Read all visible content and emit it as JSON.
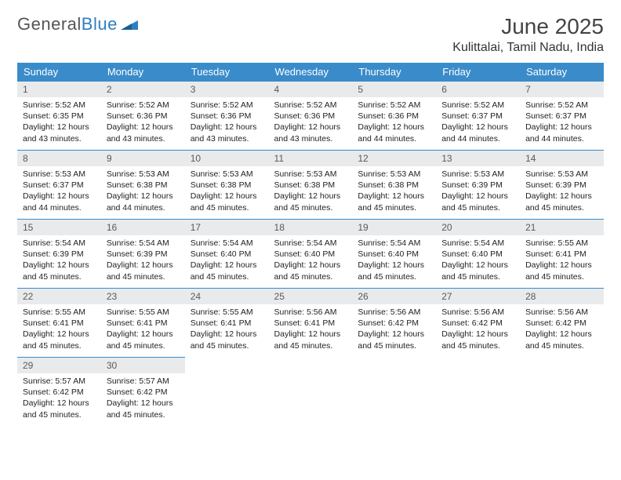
{
  "brand": {
    "part1": "General",
    "part2": "Blue"
  },
  "title": "June 2025",
  "location": "Kulittalai, Tamil Nadu, India",
  "colors": {
    "header_bg": "#3a8bca",
    "header_text": "#ffffff",
    "daynum_bg": "#e9eaeb",
    "daynum_text": "#5a5a5a",
    "border": "#3a8bca",
    "body_text": "#222222",
    "page_bg": "#ffffff",
    "title_text": "#444444",
    "logo_gray": "#555555",
    "logo_blue": "#2f7fc0"
  },
  "typography": {
    "month_title_fontsize": 28,
    "location_fontsize": 16,
    "weekday_fontsize": 13,
    "daynum_fontsize": 12,
    "body_fontsize": 10.5
  },
  "weekdays": [
    "Sunday",
    "Monday",
    "Tuesday",
    "Wednesday",
    "Thursday",
    "Friday",
    "Saturday"
  ],
  "weeks": [
    [
      {
        "n": "1",
        "sr": "5:52 AM",
        "ss": "6:35 PM",
        "dl": "12 hours and 43 minutes."
      },
      {
        "n": "2",
        "sr": "5:52 AM",
        "ss": "6:36 PM",
        "dl": "12 hours and 43 minutes."
      },
      {
        "n": "3",
        "sr": "5:52 AM",
        "ss": "6:36 PM",
        "dl": "12 hours and 43 minutes."
      },
      {
        "n": "4",
        "sr": "5:52 AM",
        "ss": "6:36 PM",
        "dl": "12 hours and 43 minutes."
      },
      {
        "n": "5",
        "sr": "5:52 AM",
        "ss": "6:36 PM",
        "dl": "12 hours and 44 minutes."
      },
      {
        "n": "6",
        "sr": "5:52 AM",
        "ss": "6:37 PM",
        "dl": "12 hours and 44 minutes."
      },
      {
        "n": "7",
        "sr": "5:52 AM",
        "ss": "6:37 PM",
        "dl": "12 hours and 44 minutes."
      }
    ],
    [
      {
        "n": "8",
        "sr": "5:53 AM",
        "ss": "6:37 PM",
        "dl": "12 hours and 44 minutes."
      },
      {
        "n": "9",
        "sr": "5:53 AM",
        "ss": "6:38 PM",
        "dl": "12 hours and 44 minutes."
      },
      {
        "n": "10",
        "sr": "5:53 AM",
        "ss": "6:38 PM",
        "dl": "12 hours and 45 minutes."
      },
      {
        "n": "11",
        "sr": "5:53 AM",
        "ss": "6:38 PM",
        "dl": "12 hours and 45 minutes."
      },
      {
        "n": "12",
        "sr": "5:53 AM",
        "ss": "6:38 PM",
        "dl": "12 hours and 45 minutes."
      },
      {
        "n": "13",
        "sr": "5:53 AM",
        "ss": "6:39 PM",
        "dl": "12 hours and 45 minutes."
      },
      {
        "n": "14",
        "sr": "5:53 AM",
        "ss": "6:39 PM",
        "dl": "12 hours and 45 minutes."
      }
    ],
    [
      {
        "n": "15",
        "sr": "5:54 AM",
        "ss": "6:39 PM",
        "dl": "12 hours and 45 minutes."
      },
      {
        "n": "16",
        "sr": "5:54 AM",
        "ss": "6:39 PM",
        "dl": "12 hours and 45 minutes."
      },
      {
        "n": "17",
        "sr": "5:54 AM",
        "ss": "6:40 PM",
        "dl": "12 hours and 45 minutes."
      },
      {
        "n": "18",
        "sr": "5:54 AM",
        "ss": "6:40 PM",
        "dl": "12 hours and 45 minutes."
      },
      {
        "n": "19",
        "sr": "5:54 AM",
        "ss": "6:40 PM",
        "dl": "12 hours and 45 minutes."
      },
      {
        "n": "20",
        "sr": "5:54 AM",
        "ss": "6:40 PM",
        "dl": "12 hours and 45 minutes."
      },
      {
        "n": "21",
        "sr": "5:55 AM",
        "ss": "6:41 PM",
        "dl": "12 hours and 45 minutes."
      }
    ],
    [
      {
        "n": "22",
        "sr": "5:55 AM",
        "ss": "6:41 PM",
        "dl": "12 hours and 45 minutes."
      },
      {
        "n": "23",
        "sr": "5:55 AM",
        "ss": "6:41 PM",
        "dl": "12 hours and 45 minutes."
      },
      {
        "n": "24",
        "sr": "5:55 AM",
        "ss": "6:41 PM",
        "dl": "12 hours and 45 minutes."
      },
      {
        "n": "25",
        "sr": "5:56 AM",
        "ss": "6:41 PM",
        "dl": "12 hours and 45 minutes."
      },
      {
        "n": "26",
        "sr": "5:56 AM",
        "ss": "6:42 PM",
        "dl": "12 hours and 45 minutes."
      },
      {
        "n": "27",
        "sr": "5:56 AM",
        "ss": "6:42 PM",
        "dl": "12 hours and 45 minutes."
      },
      {
        "n": "28",
        "sr": "5:56 AM",
        "ss": "6:42 PM",
        "dl": "12 hours and 45 minutes."
      }
    ],
    [
      {
        "n": "29",
        "sr": "5:57 AM",
        "ss": "6:42 PM",
        "dl": "12 hours and 45 minutes."
      },
      {
        "n": "30",
        "sr": "5:57 AM",
        "ss": "6:42 PM",
        "dl": "12 hours and 45 minutes."
      },
      null,
      null,
      null,
      null,
      null
    ]
  ],
  "labels": {
    "sunrise": "Sunrise:",
    "sunset": "Sunset:",
    "daylight": "Daylight:"
  }
}
